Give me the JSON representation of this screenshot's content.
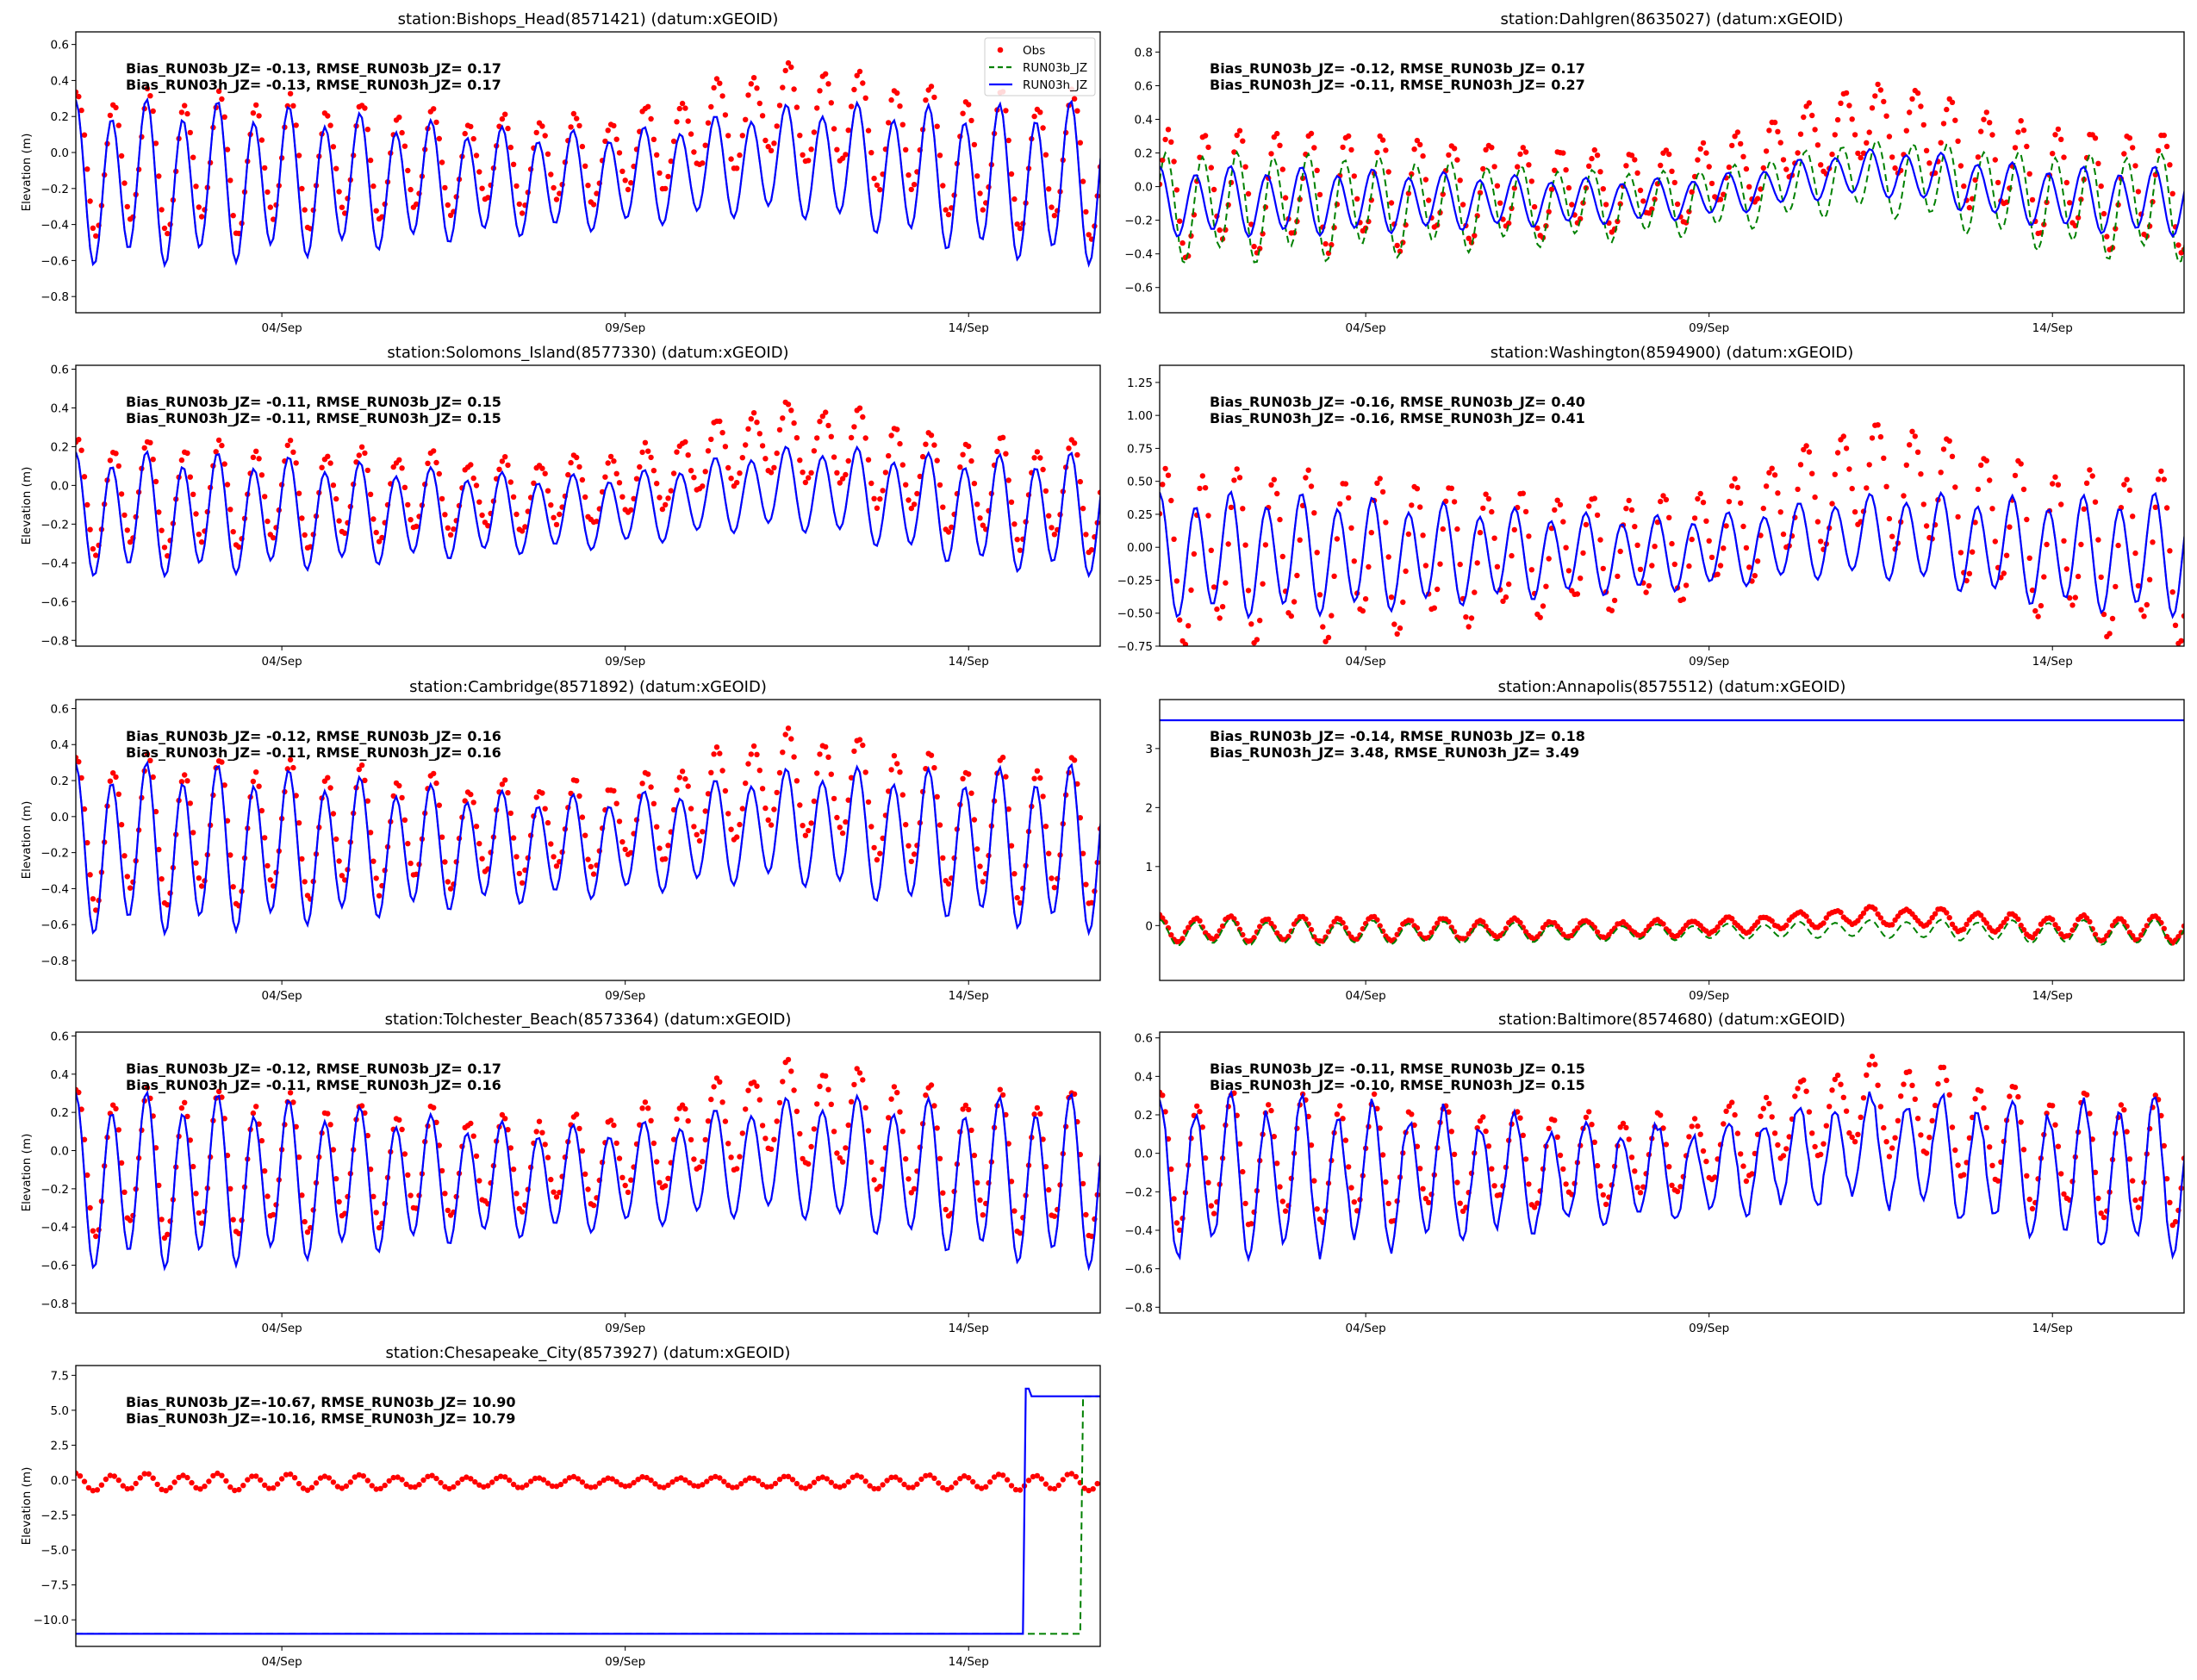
{
  "figure": {
    "legend": {
      "items": [
        {
          "label": "Obs",
          "color": "#ff0000",
          "style": "dot"
        },
        {
          "label": "RUN03b_JZ",
          "color": "#008000",
          "style": "dashed"
        },
        {
          "label": "RUN03h_JZ",
          "color": "#0000ff",
          "style": "solid"
        }
      ]
    },
    "ylabel": "Elevation (m)",
    "xticks": [
      "04/Sep",
      "09/Sep",
      "14/Sep"
    ]
  },
  "chart_data": [
    {
      "type": "line",
      "title": "station:Bishops_Head(8571421) (datum:xGEOID)",
      "xlabel": "",
      "ylabel": "Elevation (m)",
      "x_unit": "hours since 01/Sep 00:00",
      "xlim": [
        0,
        358
      ],
      "ylim": [
        -0.89,
        0.67
      ],
      "yticks": [
        -0.8,
        -0.6,
        -0.4,
        -0.2,
        0.0,
        0.2,
        0.4,
        0.6
      ],
      "ytick_labels": [
        "−0.8",
        "−0.6",
        "−0.4",
        "−0.2",
        "0.0",
        "0.2",
        "0.4",
        "0.6"
      ],
      "xticks": [
        72,
        192,
        312
      ],
      "xtick_labels": [
        "04/Sep",
        "09/Sep",
        "14/Sep"
      ],
      "show_ylabel": true,
      "stats": [
        "Bias_RUN03b_JZ= -0.13, RMSE_RUN03b_JZ=  0.17",
        "Bias_RUN03h_JZ= -0.13, RMSE_RUN03h_JZ=  0.17"
      ],
      "legend": "upper right",
      "model": {
        "mean": -0.17,
        "amp": 0.33,
        "surge_amp": 0.12,
        "phase": 0.0
      },
      "obs": {
        "mean": -0.06,
        "amp": 0.29,
        "surge_amp": 0.28,
        "phase": -0.35
      },
      "series_b_offset": 0.0,
      "series_b_phase": 0.0,
      "series_b_amp_scale": 1.0
    },
    {
      "type": "line",
      "title": "station:Dahlgren(8635027) (datum:xGEOID)",
      "xlabel": "",
      "ylabel": "",
      "x_unit": "hours since 01/Sep 00:00",
      "xlim": [
        0,
        358
      ],
      "ylim": [
        -0.75,
        0.92
      ],
      "yticks": [
        -0.6,
        -0.4,
        -0.2,
        0.0,
        0.2,
        0.4,
        0.6,
        0.8
      ],
      "ytick_labels": [
        "−0.6",
        "−0.4",
        "−0.2",
        "0.0",
        "0.2",
        "0.4",
        "0.6",
        "0.8"
      ],
      "xticks": [
        72,
        192,
        312
      ],
      "xtick_labels": [
        "04/Sep",
        "09/Sep",
        "14/Sep"
      ],
      "show_ylabel": false,
      "stats": [
        "Bias_RUN03b_JZ= -0.12, RMSE_RUN03b_JZ=  0.17",
        "Bias_RUN03h_JZ= -0.11, RMSE_RUN03h_JZ=  0.27"
      ],
      "model": {
        "mean": -0.09,
        "amp": 0.15,
        "surge_amp": 0.17,
        "phase": 0.0
      },
      "obs": {
        "mean": -0.02,
        "amp": 0.27,
        "surge_amp": 0.38,
        "phase": -1.6
      },
      "series_b_offset": -0.02,
      "series_b_phase": -1.2,
      "series_b_amp_scale": 1.6
    },
    {
      "type": "line",
      "title": "station:Solomons_Island(8577330) (datum:xGEOID)",
      "xlabel": "",
      "ylabel": "Elevation (m)",
      "x_unit": "hours since 01/Sep 00:00",
      "xlim": [
        0,
        358
      ],
      "ylim": [
        -0.83,
        0.62
      ],
      "yticks": [
        -0.8,
        -0.6,
        -0.4,
        -0.2,
        0.0,
        0.2,
        0.4,
        0.6
      ],
      "ytick_labels": [
        "−0.8",
        "−0.6",
        "−0.4",
        "−0.2",
        "0.0",
        "0.2",
        "0.4",
        "0.6"
      ],
      "xticks": [
        72,
        192,
        312
      ],
      "xtick_labels": [
        "04/Sep",
        "09/Sep",
        "14/Sep"
      ],
      "show_ylabel": true,
      "stats": [
        "Bias_RUN03b_JZ= -0.11, RMSE_RUN03b_JZ=  0.15",
        "Bias_RUN03h_JZ= -0.11, RMSE_RUN03h_JZ=  0.15"
      ],
      "model": {
        "mean": -0.15,
        "amp": 0.23,
        "surge_amp": 0.13,
        "phase": 0.0
      },
      "obs": {
        "mean": -0.05,
        "amp": 0.21,
        "surge_amp": 0.28,
        "phase": -0.3
      },
      "series_b_offset": 0.0,
      "series_b_phase": 0.0,
      "series_b_amp_scale": 1.0
    },
    {
      "type": "line",
      "title": "station:Washington(8594900) (datum:xGEOID)",
      "xlabel": "",
      "ylabel": "",
      "x_unit": "hours since 01/Sep 00:00",
      "xlim": [
        0,
        358
      ],
      "ylim": [
        -0.75,
        1.38
      ],
      "yticks": [
        -0.75,
        -0.5,
        -0.25,
        0.0,
        0.25,
        0.5,
        0.75,
        1.0,
        1.25
      ],
      "ytick_labels": [
        "−0.75",
        "−0.50",
        "−0.25",
        "0.00",
        "0.25",
        "0.50",
        "0.75",
        "1.00",
        "1.25"
      ],
      "xticks": [
        72,
        192,
        312
      ],
      "xtick_labels": [
        "04/Sep",
        "09/Sep",
        "14/Sep"
      ],
      "show_ylabel": false,
      "stats": [
        "Bias_RUN03b_JZ= -0.16, RMSE_RUN03b_JZ=  0.40",
        "Bias_RUN03h_JZ= -0.16, RMSE_RUN03h_JZ=  0.41"
      ],
      "model": {
        "mean": -0.06,
        "amp": 0.34,
        "surge_amp": 0.14,
        "phase": 0.0
      },
      "obs": {
        "mean": -0.04,
        "amp": 0.48,
        "surge_amp": 0.55,
        "phase": -1.2
      },
      "series_b_offset": 0.0,
      "series_b_phase": 0.0,
      "series_b_amp_scale": 1.0
    },
    {
      "type": "line",
      "title": "station:Cambridge(8571892) (datum:xGEOID)",
      "xlabel": "",
      "ylabel": "Elevation (m)",
      "x_unit": "hours since 01/Sep 00:00",
      "xlim": [
        0,
        358
      ],
      "ylim": [
        -0.91,
        0.65
      ],
      "yticks": [
        -0.8,
        -0.6,
        -0.4,
        -0.2,
        0.0,
        0.2,
        0.4,
        0.6
      ],
      "ytick_labels": [
        "−0.8",
        "−0.6",
        "−0.4",
        "−0.2",
        "0.0",
        "0.2",
        "0.4",
        "0.6"
      ],
      "xticks": [
        72,
        192,
        312
      ],
      "xtick_labels": [
        "04/Sep",
        "09/Sep",
        "14/Sep"
      ],
      "show_ylabel": true,
      "stats": [
        "Bias_RUN03b_JZ= -0.12, RMSE_RUN03b_JZ=  0.16",
        "Bias_RUN03h_JZ= -0.11, RMSE_RUN03h_JZ=  0.16"
      ],
      "model": {
        "mean": -0.18,
        "amp": 0.34,
        "surge_amp": 0.12,
        "phase": 0.0
      },
      "obs": {
        "mean": -0.08,
        "amp": 0.3,
        "surge_amp": 0.27,
        "phase": -0.3
      },
      "series_b_offset": 0.0,
      "series_b_phase": 0.0,
      "series_b_amp_scale": 1.0
    },
    {
      "type": "line",
      "title": "station:Annapolis(8575512) (datum:xGEOID)",
      "xlabel": "",
      "ylabel": "",
      "x_unit": "hours since 01/Sep 00:00",
      "xlim": [
        0,
        358
      ],
      "ylim": [
        -0.93,
        3.83
      ],
      "yticks": [
        0,
        1,
        2,
        3
      ],
      "ytick_labels": [
        "0",
        "1",
        "2",
        "3"
      ],
      "xticks": [
        72,
        192,
        312
      ],
      "xtick_labels": [
        "04/Sep",
        "09/Sep",
        "14/Sep"
      ],
      "show_ylabel": false,
      "stats": [
        "Bias_RUN03b_JZ= -0.14, RMSE_RUN03b_JZ=  0.18",
        "Bias_RUN03h_JZ=  3.48, RMSE_RUN03h_JZ=  3.49"
      ],
      "model": {
        "mean": -0.12,
        "amp": 0.16,
        "surge_amp": 0.06,
        "phase": 0.0
      },
      "obs": {
        "mean": -0.06,
        "amp": 0.16,
        "surge_amp": 0.22,
        "phase": 0.0
      },
      "series_h_constant": 3.48,
      "series_b_offset": 0.0,
      "series_b_phase": 0.0,
      "series_b_amp_scale": 1.0
    },
    {
      "type": "line",
      "title": "station:Tolchester_Beach(8573364) (datum:xGEOID)",
      "xlabel": "",
      "ylabel": "Elevation (m)",
      "x_unit": "hours since 01/Sep 00:00",
      "xlim": [
        0,
        358
      ],
      "ylim": [
        -0.85,
        0.62
      ],
      "yticks": [
        -0.8,
        -0.6,
        -0.4,
        -0.2,
        0.0,
        0.2,
        0.4,
        0.6
      ],
      "ytick_labels": [
        "−0.8",
        "−0.6",
        "−0.4",
        "−0.2",
        "0.0",
        "0.2",
        "0.4",
        "0.6"
      ],
      "xticks": [
        72,
        192,
        312
      ],
      "xtick_labels": [
        "04/Sep",
        "09/Sep",
        "14/Sep"
      ],
      "show_ylabel": true,
      "stats": [
        "Bias_RUN03b_JZ= -0.12, RMSE_RUN03b_JZ=  0.17",
        "Bias_RUN03h_JZ= -0.11, RMSE_RUN03h_JZ=  0.16"
      ],
      "model": {
        "mean": -0.16,
        "amp": 0.33,
        "surge_amp": 0.12,
        "phase": 0.0
      },
      "obs": {
        "mean": -0.07,
        "amp": 0.28,
        "surge_amp": 0.27,
        "phase": -0.25
      },
      "series_b_offset": 0.0,
      "series_b_phase": 0.0,
      "series_b_amp_scale": 1.0
    },
    {
      "type": "line",
      "title": "station:Baltimore(8574680) (datum:xGEOID)",
      "xlabel": "",
      "ylabel": "",
      "x_unit": "hours since 01/Sep 00:00",
      "xlim": [
        0,
        358
      ],
      "ylim": [
        -0.83,
        0.63
      ],
      "yticks": [
        -0.8,
        -0.6,
        -0.4,
        -0.2,
        0.0,
        0.2,
        0.4,
        0.6
      ],
      "ytick_labels": [
        "−0.8",
        "−0.6",
        "−0.4",
        "−0.2",
        "0.0",
        "0.2",
        "0.4",
        "0.6"
      ],
      "xticks": [
        72,
        192,
        312
      ],
      "xtick_labels": [
        "04/Sep",
        "09/Sep",
        "14/Sep"
      ],
      "show_ylabel": false,
      "stats": [
        "Bias_RUN03b_JZ= -0.11, RMSE_RUN03b_JZ=  0.15",
        "Bias_RUN03h_JZ= -0.10, RMSE_RUN03h_JZ=  0.15"
      ],
      "model": {
        "mean": -0.12,
        "amp": 0.3,
        "surge_amp": 0.14,
        "phase": 0.0
      },
      "obs": {
        "mean": -0.03,
        "amp": 0.25,
        "surge_amp": 0.28,
        "phase": -0.3
      },
      "series_b_offset": 0.0,
      "series_b_phase": 0.0,
      "series_b_amp_scale": 1.0
    },
    {
      "type": "line",
      "title": "station:Chesapeake_City(8573927) (datum:xGEOID)",
      "xlabel": "",
      "ylabel": "Elevation (m)",
      "x_unit": "hours since 01/Sep 00:00",
      "xlim": [
        0,
        358
      ],
      "ylim": [
        -11.9,
        8.2
      ],
      "yticks": [
        -10.0,
        -7.5,
        -5.0,
        -2.5,
        0.0,
        2.5,
        5.0,
        7.5
      ],
      "ytick_labels": [
        "−10.0",
        "−7.5",
        "−5.0",
        "−2.5",
        "0.0",
        "2.5",
        "5.0",
        "7.5"
      ],
      "xticks": [
        72,
        192,
        312
      ],
      "xtick_labels": [
        "04/Sep",
        "09/Sep",
        "14/Sep"
      ],
      "show_ylabel": true,
      "stats": [
        "Bias_RUN03b_JZ=-10.67, RMSE_RUN03b_JZ= 10.90",
        "Bias_RUN03h_JZ=-10.16, RMSE_RUN03h_JZ= 10.79"
      ],
      "model": {
        "mean": -11.0,
        "amp": 0.0,
        "surge_amp": 0.0,
        "phase": 0.0
      },
      "obs": {
        "mean": -0.15,
        "amp": 0.45,
        "surge_amp": 0.0,
        "phase": 0.0
      },
      "step": {
        "h_jump_hour": 332,
        "h_peak": 6.55,
        "h_after": 6.0,
        "b_jump_hour": 352,
        "b_after": 6.0,
        "before": -11.0
      },
      "series_b_offset": 0.0,
      "series_b_phase": 0.0,
      "series_b_amp_scale": 1.0
    }
  ]
}
